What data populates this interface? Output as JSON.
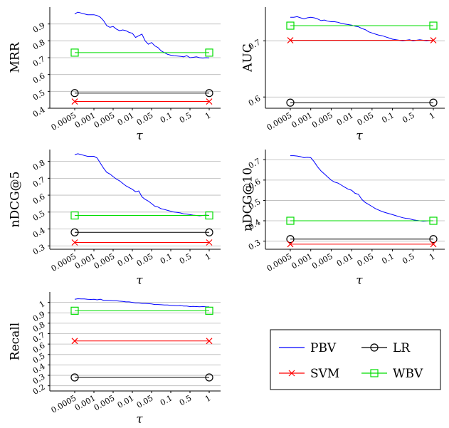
{
  "chart_data": [
    {
      "type": "line",
      "ylabel": "MRR",
      "xlabel": "τ",
      "x_ticks": [
        "0.0005",
        "0.001",
        "0.005",
        "0.01",
        "0.05",
        "0.1",
        "0.5",
        "1"
      ],
      "ylim": [
        0.4,
        1.0
      ],
      "y_ticks": [
        "0.4",
        "0.5",
        "0.6",
        "0.7",
        "0.8",
        "0.9"
      ],
      "y_tick_values": [
        0.4,
        0.5,
        0.6,
        0.7,
        0.8,
        0.9
      ],
      "series": [
        {
          "name": "PBV",
          "color": "#0000ff",
          "marker": "none",
          "values": [
            0.96,
            0.97,
            0.965,
            0.96,
            0.955,
            0.955,
            0.955,
            0.95,
            0.94,
            0.92,
            0.89,
            0.88,
            0.885,
            0.87,
            0.86,
            0.865,
            0.86,
            0.85,
            0.845,
            0.82,
            0.83,
            0.84,
            0.8,
            0.78,
            0.79,
            0.77,
            0.76,
            0.74,
            0.73,
            0.72,
            0.715,
            0.712,
            0.71,
            0.708,
            0.705,
            0.712,
            0.7,
            0.702,
            0.705,
            0.7,
            0.698,
            0.7,
            0.699
          ]
        },
        {
          "name": "LR",
          "color": "#000000",
          "marker": "circle",
          "values": [
            0.49,
            0.49
          ]
        },
        {
          "name": "SVM",
          "color": "#ff0000",
          "marker": "cross",
          "values": [
            0.44,
            0.44
          ]
        },
        {
          "name": "WBV",
          "color": "#00dd00",
          "marker": "square",
          "values": [
            0.73,
            0.73
          ]
        }
      ]
    },
    {
      "type": "line",
      "ylabel": "AUC",
      "xlabel": "τ",
      "x_ticks": [
        "0.0005",
        "0.001",
        "0.005",
        "0.01",
        "0.05",
        "0.1",
        "0.5",
        "1"
      ],
      "ylim": [
        0.58,
        0.76
      ],
      "y_ticks": [
        "0.6",
        "0.7"
      ],
      "y_tick_values": [
        0.6,
        0.7
      ],
      "series": [
        {
          "name": "PBV",
          "color": "#0000ff",
          "marker": "none",
          "values": [
            0.742,
            0.742,
            0.743,
            0.741,
            0.739,
            0.741,
            0.742,
            0.741,
            0.739,
            0.736,
            0.737,
            0.735,
            0.734,
            0.734,
            0.733,
            0.731,
            0.73,
            0.729,
            0.728,
            0.726,
            0.725,
            0.722,
            0.72,
            0.716,
            0.714,
            0.712,
            0.71,
            0.709,
            0.707,
            0.705,
            0.703,
            0.702,
            0.701,
            0.7,
            0.701,
            0.702,
            0.7,
            0.701,
            0.702,
            0.701,
            0.7,
            0.701,
            0.701
          ]
        },
        {
          "name": "LR",
          "color": "#000000",
          "marker": "circle",
          "values": [
            0.59,
            0.59
          ]
        },
        {
          "name": "SVM",
          "color": "#ff0000",
          "marker": "cross",
          "values": [
            0.701,
            0.701
          ]
        },
        {
          "name": "WBV",
          "color": "#00dd00",
          "marker": "square",
          "values": [
            0.727,
            0.727
          ]
        }
      ]
    },
    {
      "type": "line",
      "ylabel": "nDCG@5",
      "xlabel": "τ",
      "x_ticks": [
        "0.0005",
        "0.001",
        "0.005",
        "0.01",
        "0.05",
        "0.1",
        "0.5",
        "1"
      ],
      "ylim": [
        0.28,
        0.87
      ],
      "y_ticks": [
        "0.3",
        "0.4",
        "0.5",
        "0.6",
        "0.7",
        "0.8"
      ],
      "y_tick_values": [
        0.3,
        0.4,
        0.5,
        0.6,
        0.7,
        0.8
      ],
      "series": [
        {
          "name": "PBV",
          "color": "#0000ff",
          "marker": "none",
          "values": [
            0.84,
            0.845,
            0.84,
            0.835,
            0.83,
            0.83,
            0.83,
            0.82,
            0.79,
            0.76,
            0.735,
            0.725,
            0.71,
            0.695,
            0.685,
            0.67,
            0.655,
            0.645,
            0.635,
            0.62,
            0.625,
            0.59,
            0.575,
            0.565,
            0.55,
            0.535,
            0.53,
            0.52,
            0.515,
            0.51,
            0.505,
            0.5,
            0.498,
            0.495,
            0.49,
            0.488,
            0.485,
            0.482,
            0.48,
            0.478,
            0.48,
            0.482,
            0.48
          ]
        },
        {
          "name": "LR",
          "color": "#000000",
          "marker": "circle",
          "values": [
            0.38,
            0.38
          ]
        },
        {
          "name": "SVM",
          "color": "#ff0000",
          "marker": "cross",
          "values": [
            0.32,
            0.32
          ]
        },
        {
          "name": "WBV",
          "color": "#00dd00",
          "marker": "square",
          "values": [
            0.48,
            0.48
          ]
        }
      ]
    },
    {
      "type": "line",
      "ylabel": "nDCG@10",
      "xlabel": "τ",
      "x_ticks": [
        "0.0005",
        "0.001",
        "0.005",
        "0.01",
        "0.05",
        "0.1",
        "0.5",
        "1"
      ],
      "ylim": [
        0.26,
        0.75
      ],
      "y_ticks": [
        "0.3",
        "0.4",
        "0.5",
        "0.6",
        "0.7"
      ],
      "y_tick_values": [
        0.3,
        0.4,
        0.5,
        0.6,
        0.7
      ],
      "series": [
        {
          "name": "PBV",
          "color": "#0000ff",
          "marker": "none",
          "values": [
            0.72,
            0.72,
            0.718,
            0.715,
            0.71,
            0.712,
            0.71,
            0.69,
            0.665,
            0.645,
            0.63,
            0.615,
            0.6,
            0.59,
            0.585,
            0.575,
            0.565,
            0.555,
            0.55,
            0.535,
            0.53,
            0.505,
            0.49,
            0.48,
            0.47,
            0.46,
            0.452,
            0.445,
            0.44,
            0.435,
            0.43,
            0.425,
            0.42,
            0.415,
            0.412,
            0.41,
            0.405,
            0.402,
            0.4,
            0.398,
            0.399,
            0.4,
            0.4
          ]
        },
        {
          "name": "LR",
          "color": "#000000",
          "marker": "circle",
          "values": [
            0.31,
            0.31
          ]
        },
        {
          "name": "SVM",
          "color": "#ff0000",
          "marker": "cross",
          "values": [
            0.285,
            0.285
          ]
        },
        {
          "name": "WBV",
          "color": "#00dd00",
          "marker": "square",
          "values": [
            0.4,
            0.4
          ]
        }
      ]
    },
    {
      "type": "line",
      "ylabel": "Recall",
      "xlabel": "τ",
      "x_ticks": [
        "0.0005",
        "0.001",
        "0.005",
        "0.01",
        "0.05",
        "0.1",
        "0.5",
        "1"
      ],
      "ylim": [
        0.15,
        1.1
      ],
      "y_ticks": [
        "0.2",
        "0.3",
        "0.4",
        "0.5",
        "0.6",
        "0.7",
        "0.8",
        "0.9",
        "1"
      ],
      "y_tick_values": [
        0.2,
        0.3,
        0.4,
        0.5,
        0.6,
        0.7,
        0.8,
        0.9,
        1.0
      ],
      "series": [
        {
          "name": "PBV",
          "color": "#0000ff",
          "marker": "none",
          "values": [
            1.03,
            1.035,
            1.033,
            1.034,
            1.03,
            1.028,
            1.03,
            1.025,
            1.03,
            1.02,
            1.02,
            1.018,
            1.015,
            1.015,
            1.012,
            1.01,
            1.005,
            1.005,
            1.0,
            0.995,
            0.995,
            0.99,
            0.99,
            0.988,
            0.985,
            0.98,
            0.98,
            0.978,
            0.975,
            0.975,
            0.972,
            0.97,
            0.968,
            0.97,
            0.965,
            0.965,
            0.96,
            0.962,
            0.96,
            0.958,
            0.96,
            0.958,
            0.957
          ]
        },
        {
          "name": "LR",
          "color": "#000000",
          "marker": "circle",
          "values": [
            0.28,
            0.28
          ]
        },
        {
          "name": "SVM",
          "color": "#ff0000",
          "marker": "cross",
          "values": [
            0.63,
            0.63
          ]
        },
        {
          "name": "WBV",
          "color": "#00dd00",
          "marker": "square",
          "values": [
            0.92,
            0.92
          ]
        }
      ]
    }
  ],
  "legend": {
    "placement": "bottom-right",
    "entries": [
      {
        "name": "PBV",
        "color": "#0000ff",
        "marker": "none"
      },
      {
        "name": "LR",
        "color": "#000000",
        "marker": "circle"
      },
      {
        "name": "SVM",
        "color": "#ff0000",
        "marker": "cross"
      },
      {
        "name": "WBV",
        "color": "#00dd00",
        "marker": "square"
      }
    ]
  }
}
